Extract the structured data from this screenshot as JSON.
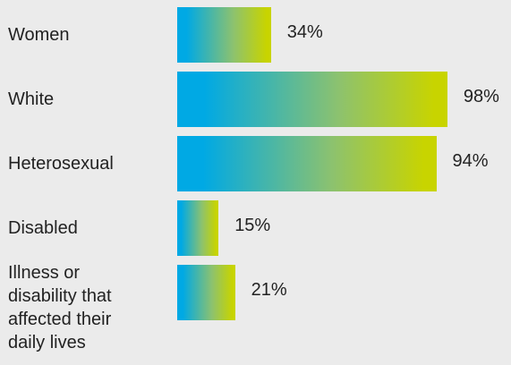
{
  "chart_data": {
    "type": "bar",
    "orientation": "horizontal",
    "categories": [
      "Women",
      "White",
      "Heterosexual",
      "Disabled",
      "Illness or disability that affected their daily lives"
    ],
    "values": [
      34,
      98,
      94,
      15,
      21
    ],
    "value_labels": [
      "34%",
      "98%",
      "94%",
      "15%",
      "21%"
    ],
    "unit": "%",
    "xlim": [
      0,
      100
    ],
    "grid": false,
    "legend": "none",
    "colors": {
      "gradient_start": "#00a9e4",
      "gradient_mid": "#8dc26e",
      "gradient_end": "#c8d400",
      "background": "#ebebeb",
      "text": "#222222"
    }
  }
}
